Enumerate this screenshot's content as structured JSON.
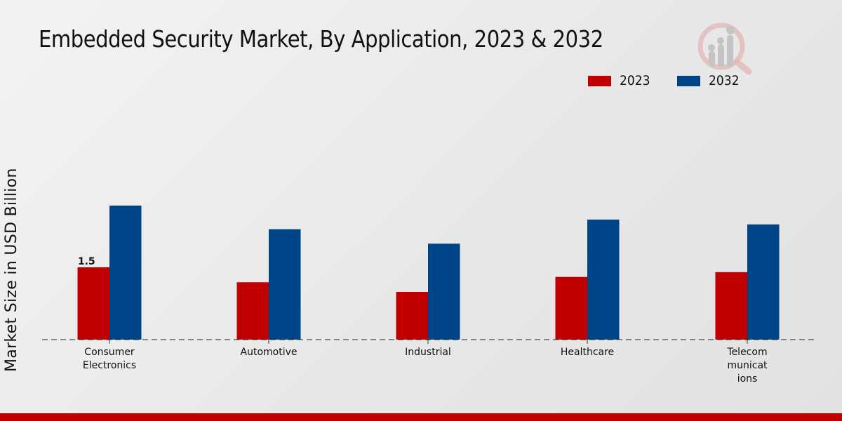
{
  "chart_data": {
    "type": "bar",
    "title": "Embedded Security Market, By Application, 2023 & 2032",
    "xlabel": "",
    "ylabel": "Market Size in USD Billion",
    "ylim": [
      0,
      3.2
    ],
    "grid": false,
    "legend_position": "top-right",
    "categories": [
      [
        "Consumer",
        "Electronics"
      ],
      [
        "Automotive"
      ],
      [
        "Industrial"
      ],
      [
        "Healthcare"
      ],
      [
        "Telecom",
        "municat",
        "ions"
      ]
    ],
    "series": [
      {
        "name": "2023",
        "color": "#c00000",
        "values": [
          1.5,
          1.19,
          0.99,
          1.3,
          1.4
        ]
      },
      {
        "name": "2032",
        "color": "#004488",
        "values": [
          2.78,
          2.29,
          1.99,
          2.49,
          2.39
        ]
      }
    ],
    "annotations": [
      {
        "series": "2023",
        "category_index": 0,
        "text": "1.5"
      }
    ]
  },
  "legend": {
    "items": [
      {
        "label": "2023",
        "color": "#c00000"
      },
      {
        "label": "2032",
        "color": "#004488"
      }
    ]
  },
  "logo": {
    "icon": "magnifier-chart-logo-icon"
  },
  "footer_bar_color": "#c00000"
}
